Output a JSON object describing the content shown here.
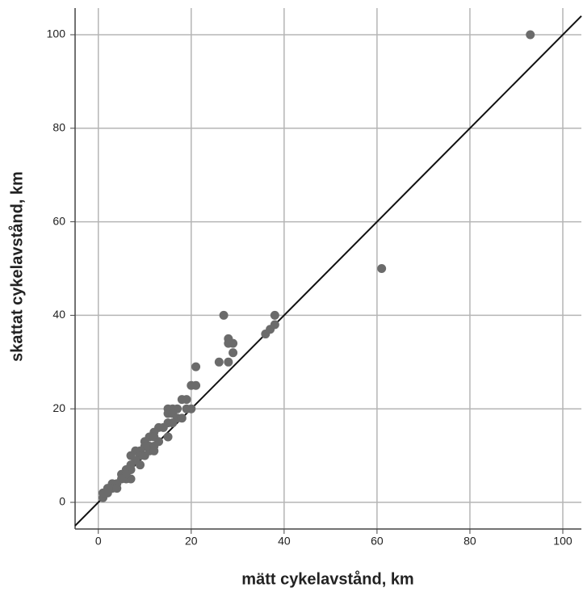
{
  "chart_data": {
    "type": "scatter",
    "x_label": "mätt cykelavstånd, km",
    "y_label": "skattat cykelavstånd, km",
    "x": [
      93,
      61,
      27,
      38,
      28,
      29,
      28,
      29,
      26,
      28,
      36,
      37,
      38,
      21,
      20,
      21,
      18,
      19,
      20,
      19,
      16,
      17,
      15,
      15,
      16,
      17,
      18,
      15,
      14,
      16,
      15,
      13,
      12,
      11,
      12,
      13,
      10,
      11,
      12,
      10,
      9,
      8,
      7,
      9,
      10,
      11,
      12,
      8,
      9,
      7,
      6,
      7,
      5,
      6,
      7,
      6,
      5,
      4,
      3,
      2,
      3,
      2,
      1,
      1,
      4
    ],
    "values": [
      100,
      50,
      40,
      40,
      35,
      34,
      34,
      32,
      30,
      30,
      36,
      37,
      38,
      29,
      25,
      25,
      22,
      22,
      20,
      20,
      20,
      20,
      20,
      19,
      19,
      18,
      18,
      17,
      16,
      17,
      14,
      16,
      15,
      14,
      14,
      13,
      13,
      12,
      12,
      12,
      11,
      11,
      10,
      10,
      10,
      11,
      11,
      9,
      8,
      8,
      7,
      7,
      6,
      5,
      5,
      6,
      5,
      4,
      4,
      3,
      3,
      2,
      1,
      2,
      3
    ],
    "color": "#6b6b6b",
    "xlim": [
      -5,
      104
    ],
    "ylim": [
      -5.7,
      105.7
    ],
    "xticks": [
      0,
      20,
      40,
      60,
      80,
      100
    ],
    "yticks": [
      0,
      20,
      40,
      60,
      80,
      100
    ],
    "grid": true,
    "identity_line": true
  }
}
